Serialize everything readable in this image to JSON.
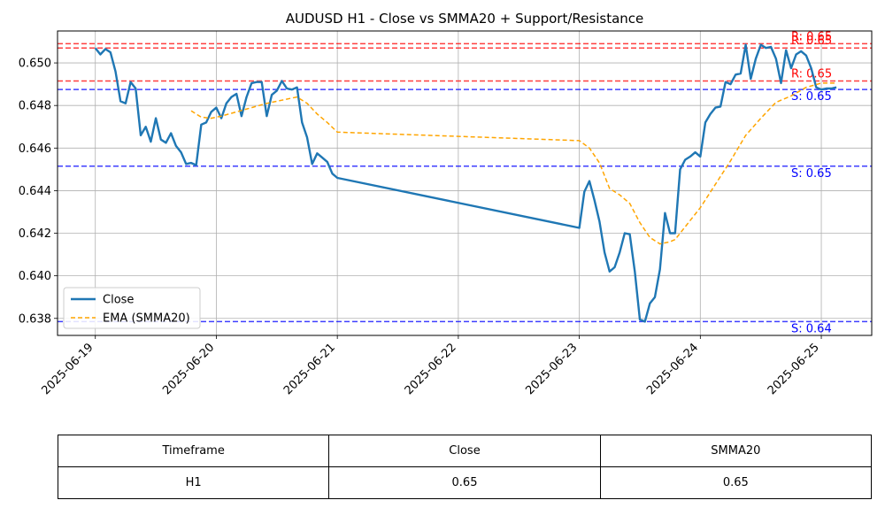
{
  "chart_data": {
    "type": "line",
    "title": "AUDUSD H1 - Close vs SMMA20 + Support/Resistance",
    "xlabel": "",
    "ylabel": "",
    "x_ticks": [
      "2025-06-19",
      "2025-06-20",
      "2025-06-21",
      "2025-06-22",
      "2025-06-23",
      "2025-06-24",
      "2025-06-25"
    ],
    "y_ticks": [
      "0.638",
      "0.640",
      "0.642",
      "0.644",
      "0.646",
      "0.648",
      "0.650"
    ],
    "ylim": [
      0.6372,
      0.6515
    ],
    "xlim": [
      "2025-06-18T16:30",
      "2025-06-25T10:00"
    ],
    "grid": true,
    "legend_position": "lower-left",
    "series": [
      {
        "name": "Close",
        "color": "#1f77b4",
        "style": "solid",
        "points": [
          [
            "2025-06-19T00:00",
            0.6507
          ],
          [
            "2025-06-19T01:00",
            0.6504
          ],
          [
            "2025-06-19T02:00",
            0.65065
          ],
          [
            "2025-06-19T03:00",
            0.6505
          ],
          [
            "2025-06-19T04:00",
            0.6496
          ],
          [
            "2025-06-19T05:00",
            0.6482
          ],
          [
            "2025-06-19T06:00",
            0.6481
          ],
          [
            "2025-06-19T07:00",
            0.6491
          ],
          [
            "2025-06-19T08:00",
            0.6488
          ],
          [
            "2025-06-19T09:00",
            0.6466
          ],
          [
            "2025-06-19T10:00",
            0.647
          ],
          [
            "2025-06-19T11:00",
            0.6463
          ],
          [
            "2025-06-19T12:00",
            0.6474
          ],
          [
            "2025-06-19T13:00",
            0.6464
          ],
          [
            "2025-06-19T14:00",
            0.64625
          ],
          [
            "2025-06-19T15:00",
            0.6467
          ],
          [
            "2025-06-19T16:00",
            0.6461
          ],
          [
            "2025-06-19T17:00",
            0.6458
          ],
          [
            "2025-06-19T18:00",
            0.64525
          ],
          [
            "2025-06-19T19:00",
            0.6453
          ],
          [
            "2025-06-19T20:00",
            0.6452
          ],
          [
            "2025-06-19T21:00",
            0.6471
          ],
          [
            "2025-06-19T22:00",
            0.6472
          ],
          [
            "2025-06-19T23:00",
            0.6477
          ],
          [
            "2025-06-20T00:00",
            0.6479
          ],
          [
            "2025-06-20T01:00",
            0.6474
          ],
          [
            "2025-06-20T02:00",
            0.6481
          ],
          [
            "2025-06-20T03:00",
            0.6484
          ],
          [
            "2025-06-20T04:00",
            0.64855
          ],
          [
            "2025-06-20T05:00",
            0.6475
          ],
          [
            "2025-06-20T06:00",
            0.6484
          ],
          [
            "2025-06-20T07:00",
            0.64905
          ],
          [
            "2025-06-20T08:00",
            0.6491
          ],
          [
            "2025-06-20T09:00",
            0.6491
          ],
          [
            "2025-06-20T10:00",
            0.6475
          ],
          [
            "2025-06-20T11:00",
            0.6485
          ],
          [
            "2025-06-20T12:00",
            0.6487
          ],
          [
            "2025-06-20T13:00",
            0.64915
          ],
          [
            "2025-06-20T14:00",
            0.6488
          ],
          [
            "2025-06-20T15:00",
            0.64875
          ],
          [
            "2025-06-20T16:00",
            0.64885
          ],
          [
            "2025-06-20T17:00",
            0.6472
          ],
          [
            "2025-06-20T18:00",
            0.6465
          ],
          [
            "2025-06-20T19:00",
            0.64525
          ],
          [
            "2025-06-20T20:00",
            0.64575
          ],
          [
            "2025-06-20T21:00",
            0.64555
          ],
          [
            "2025-06-20T22:00",
            0.64535
          ],
          [
            "2025-06-20T23:00",
            0.6448
          ],
          [
            "2025-06-21T00:00",
            0.6446
          ],
          [
            "2025-06-23T00:00",
            0.64225
          ],
          [
            "2025-06-23T01:00",
            0.64395
          ],
          [
            "2025-06-23T02:00",
            0.64445
          ],
          [
            "2025-06-23T03:00",
            0.64355
          ],
          [
            "2025-06-23T04:00",
            0.64255
          ],
          [
            "2025-06-23T05:00",
            0.6411
          ],
          [
            "2025-06-23T06:00",
            0.6402
          ],
          [
            "2025-06-23T07:00",
            0.6404
          ],
          [
            "2025-06-23T08:00",
            0.6411
          ],
          [
            "2025-06-23T09:00",
            0.642
          ],
          [
            "2025-06-23T10:00",
            0.64195
          ],
          [
            "2025-06-23T11:00",
            0.6402
          ],
          [
            "2025-06-23T12:00",
            0.63795
          ],
          [
            "2025-06-23T13:00",
            0.63785
          ],
          [
            "2025-06-23T14:00",
            0.6387
          ],
          [
            "2025-06-23T15:00",
            0.639
          ],
          [
            "2025-06-23T16:00",
            0.6403
          ],
          [
            "2025-06-23T17:00",
            0.64295
          ],
          [
            "2025-06-23T18:00",
            0.642
          ],
          [
            "2025-06-23T19:00",
            0.642
          ],
          [
            "2025-06-23T20:00",
            0.645
          ],
          [
            "2025-06-23T21:00",
            0.64545
          ],
          [
            "2025-06-23T22:00",
            0.6456
          ],
          [
            "2025-06-23T23:00",
            0.6458
          ],
          [
            "2025-06-24T00:00",
            0.6456
          ],
          [
            "2025-06-24T01:00",
            0.6472
          ],
          [
            "2025-06-24T02:00",
            0.6476
          ],
          [
            "2025-06-24T03:00",
            0.6479
          ],
          [
            "2025-06-24T04:00",
            0.64795
          ],
          [
            "2025-06-24T05:00",
            0.6491
          ],
          [
            "2025-06-24T06:00",
            0.649
          ],
          [
            "2025-06-24T07:00",
            0.64945
          ],
          [
            "2025-06-24T08:00",
            0.6495
          ],
          [
            "2025-06-24T09:00",
            0.65085
          ],
          [
            "2025-06-24T10:00",
            0.64925
          ],
          [
            "2025-06-24T11:00",
            0.6502
          ],
          [
            "2025-06-24T12:00",
            0.65085
          ],
          [
            "2025-06-24T13:00",
            0.6507
          ],
          [
            "2025-06-24T14:00",
            0.65075
          ],
          [
            "2025-06-24T15:00",
            0.6502
          ],
          [
            "2025-06-24T16:00",
            0.64905
          ],
          [
            "2025-06-24T17:00",
            0.6506
          ],
          [
            "2025-06-24T18:00",
            0.64975
          ],
          [
            "2025-06-24T19:00",
            0.6504
          ],
          [
            "2025-06-24T20:00",
            0.65055
          ],
          [
            "2025-06-24T21:00",
            0.65035
          ],
          [
            "2025-06-24T22:00",
            0.64975
          ],
          [
            "2025-06-24T23:00",
            0.64885
          ],
          [
            "2025-06-25T00:00",
            0.64875
          ],
          [
            "2025-06-25T01:00",
            0.6488
          ],
          [
            "2025-06-25T02:00",
            0.6488
          ],
          [
            "2025-06-25T03:00",
            0.64885
          ]
        ]
      },
      {
        "name": "EMA (SMMA20)",
        "color": "#ffa500",
        "style": "dashed",
        "points": [
          [
            "2025-06-19T19:00",
            0.64775
          ],
          [
            "2025-06-19T21:00",
            0.64745
          ],
          [
            "2025-06-19T23:00",
            0.6474
          ],
          [
            "2025-06-20T01:00",
            0.6475
          ],
          [
            "2025-06-20T04:00",
            0.6477
          ],
          [
            "2025-06-20T07:00",
            0.6479
          ],
          [
            "2025-06-20T10:00",
            0.6481
          ],
          [
            "2025-06-20T13:00",
            0.64825
          ],
          [
            "2025-06-20T16:00",
            0.6484
          ],
          [
            "2025-06-20T18:00",
            0.6481
          ],
          [
            "2025-06-20T20:00",
            0.6476
          ],
          [
            "2025-06-20T22:00",
            0.6472
          ],
          [
            "2025-06-21T00:00",
            0.64675
          ],
          [
            "2025-06-23T00:00",
            0.64635
          ],
          [
            "2025-06-23T02:00",
            0.646
          ],
          [
            "2025-06-23T04:00",
            0.6453
          ],
          [
            "2025-06-23T06:00",
            0.6441
          ],
          [
            "2025-06-23T08:00",
            0.6438
          ],
          [
            "2025-06-23T10:00",
            0.6434
          ],
          [
            "2025-06-23T12:00",
            0.6425
          ],
          [
            "2025-06-23T14:00",
            0.6418
          ],
          [
            "2025-06-23T16:00",
            0.6415
          ],
          [
            "2025-06-23T18:00",
            0.6416
          ],
          [
            "2025-06-23T19:00",
            0.6417
          ],
          [
            "2025-06-23T21:00",
            0.6423
          ],
          [
            "2025-06-24T00:00",
            0.6432
          ],
          [
            "2025-06-24T03:00",
            0.6443
          ],
          [
            "2025-06-24T06:00",
            0.6454
          ],
          [
            "2025-06-24T09:00",
            0.6466
          ],
          [
            "2025-06-24T12:00",
            0.6474
          ],
          [
            "2025-06-24T15:00",
            0.64815
          ],
          [
            "2025-06-24T18:00",
            0.64845
          ],
          [
            "2025-06-24T21:00",
            0.64885
          ],
          [
            "2025-06-25T00:00",
            0.64905
          ],
          [
            "2025-06-25T03:00",
            0.64905
          ]
        ]
      }
    ],
    "levels": [
      {
        "kind": "resistance",
        "value": 0.6509,
        "color": "#ff0000",
        "label": "R: 0.65"
      },
      {
        "kind": "resistance",
        "value": 0.6507,
        "color": "#ff0000",
        "label": "R: 0.65"
      },
      {
        "kind": "resistance",
        "value": 0.64915,
        "color": "#ff0000",
        "label": "R: 0.65"
      },
      {
        "kind": "support",
        "value": 0.64875,
        "color": "#0000ff",
        "label": "S: 0.65"
      },
      {
        "kind": "support",
        "value": 0.64515,
        "color": "#0000ff",
        "label": "S: 0.65"
      },
      {
        "kind": "support",
        "value": 0.63785,
        "color": "#0000ff",
        "label": "S: 0.64"
      }
    ]
  },
  "table": {
    "headers": [
      "Timeframe",
      "Close",
      "SMMA20"
    ],
    "rows": [
      [
        "H1",
        "0.65",
        "0.65"
      ]
    ]
  }
}
